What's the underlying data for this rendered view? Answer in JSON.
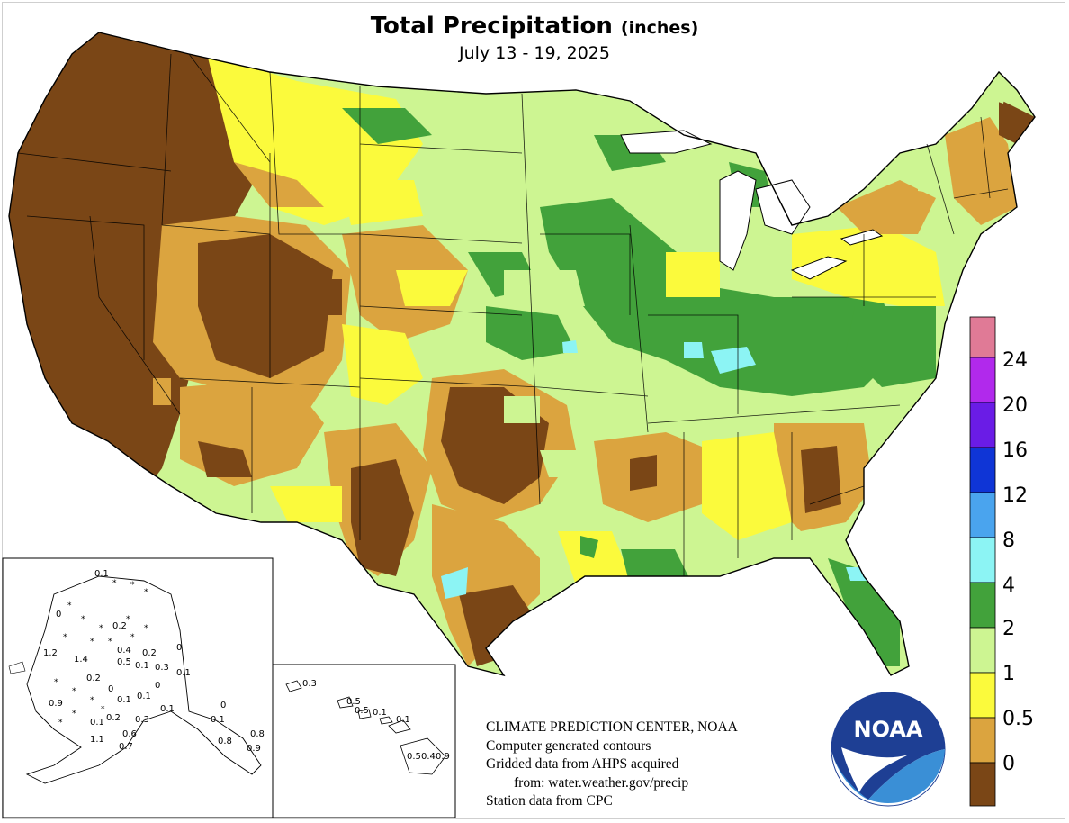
{
  "title": {
    "main": "Total Precipitation",
    "units": "(inches)",
    "date_range": "July 13 - 19, 2025"
  },
  "legend": {
    "labels": [
      "24",
      "20",
      "16",
      "12",
      "8",
      "4",
      "2",
      "1",
      "0.5",
      "0"
    ],
    "colors": [
      "#e07a96",
      "#b129ec",
      "#6a1ce6",
      "#0f35d6",
      "#4aa4ee",
      "#8cf4f4",
      "#42a23b",
      "#cdf592",
      "#fbfa3c",
      "#dba43f",
      "#7a4616"
    ]
  },
  "credits": {
    "line1": "CLIMATE PREDICTION CENTER, NOAA",
    "line2": "Computer generated contours",
    "line3": "Gridded data from AHPS acquired",
    "line4": "from: water.weather.gov/precip",
    "line5": "Station data from CPC"
  },
  "logo": {
    "text": "NOAA"
  },
  "alaska_values": [
    "0.1",
    "0",
    "0.2",
    "1.2",
    "1.4",
    "0.4",
    "0.2",
    "0.5",
    "0.1",
    "0.3",
    "0",
    "0.2",
    "0",
    "0.1",
    "0.9",
    "0.1",
    "0.1",
    "0.1",
    "0",
    "0.2",
    "0.3",
    "0.6",
    "0.7",
    "1.1",
    "0.1",
    "0",
    "0.1",
    "0.8",
    "0.9",
    "0.8"
  ],
  "hawaii_values": [
    "0.3",
    "0.5",
    "0.5",
    "0.1",
    "0.1",
    "0.5",
    "0.4",
    "0.9"
  ]
}
